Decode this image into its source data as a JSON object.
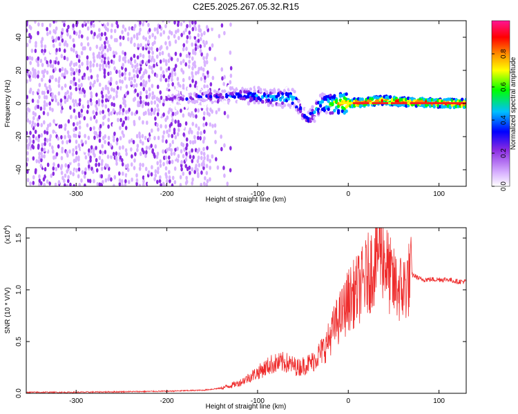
{
  "page_title": "C2E5.2025.267.05.32.R15",
  "chart_data": [
    {
      "type": "heatmap",
      "title": "C2E5.2025.267.05.32.R15",
      "xlabel": "Height of straight line (km)",
      "ylabel": "Frequency (Hz)",
      "xlim": [
        -355,
        130
      ],
      "ylim": [
        -50,
        50
      ],
      "xticks": [
        -300,
        -200,
        -100,
        0,
        100
      ],
      "yticks": [
        -40,
        -20,
        0,
        20,
        40
      ],
      "colorbar": {
        "label": "Normalized spectral amplitude",
        "range": [
          0.0,
          1.0
        ],
        "ticks": [
          0.0,
          0.2,
          0.4,
          0.6,
          0.8
        ],
        "colormap": [
          "#ffffff",
          "#d9b3ff",
          "#8a2be2",
          "#0000ff",
          "#00bfff",
          "#00ff00",
          "#ffff00",
          "#ff8c00",
          "#ff0000",
          "#ff1493"
        ]
      },
      "description_points": [
        {
          "x": -300,
          "freq_center": 5,
          "amplitude": 0.2
        },
        {
          "x": -180,
          "freq_center": 3,
          "amplitude": 0.3
        },
        {
          "x": -120,
          "freq_center": 5,
          "amplitude": 0.45
        },
        {
          "x": -60,
          "freq_center": 3,
          "amplitude": 0.55
        },
        {
          "x": -45,
          "freq_center": -10,
          "amplitude": 0.4
        },
        {
          "x": -30,
          "freq_center": 0,
          "amplitude": 0.6
        },
        {
          "x": 0,
          "freq_center": 0,
          "amplitude": 0.95
        },
        {
          "x": 40,
          "freq_center": 2,
          "amplitude": 0.9
        },
        {
          "x": 60,
          "freq_center": 1,
          "amplitude": 0.9
        },
        {
          "x": 120,
          "freq_center": 0,
          "amplitude": 0.95
        }
      ]
    },
    {
      "type": "line",
      "title": "",
      "xlabel": "Height of straight line (km)",
      "ylabel": "SNR (10 * V/V)",
      "ylabel_multiplier": "(x10",
      "ylabel_exponent": "4",
      "xlim": [
        -355,
        130
      ],
      "ylim": [
        0,
        1.6
      ],
      "xticks": [
        -300,
        -200,
        -100,
        0,
        100
      ],
      "yticks": [
        0.0,
        0.5,
        1.0,
        1.5
      ],
      "ytick_labels": [
        "0.0",
        "0.5",
        "1.0",
        "1.5"
      ],
      "color": "#ee2b2b",
      "series": [
        {
          "x": [
            -355,
            -300,
            -250,
            -200,
            -160,
            -140,
            -120,
            -100,
            -85,
            -70,
            -55,
            -40,
            -25,
            -15,
            -5,
            0,
            5,
            15,
            25,
            30,
            35,
            40,
            45,
            50,
            60,
            70,
            80,
            90,
            100,
            110,
            120,
            130
          ],
          "values": [
            0.01,
            0.01,
            0.015,
            0.02,
            0.03,
            0.05,
            0.1,
            0.2,
            0.28,
            0.3,
            0.25,
            0.3,
            0.45,
            0.65,
            0.8,
            0.9,
            0.95,
            1.05,
            1.2,
            1.3,
            1.45,
            1.3,
            1.15,
            1.05,
            1.0,
            1.15,
            1.1,
            1.1,
            1.1,
            1.1,
            1.08,
            1.08
          ]
        }
      ]
    }
  ]
}
